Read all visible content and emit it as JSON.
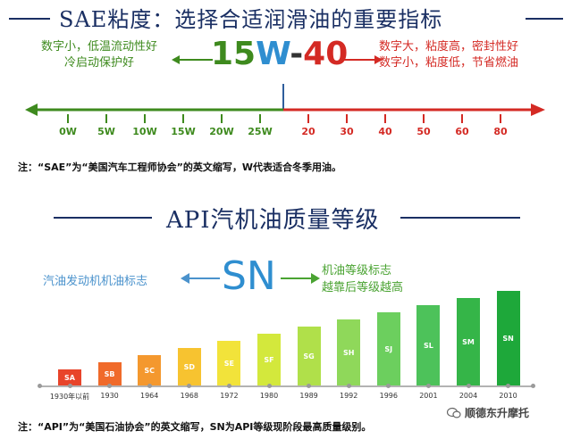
{
  "sae": {
    "title": "SAE粘度：选择合适润滑油的重要指标",
    "grade": {
      "w_part": "15",
      "w_letter": "W",
      "dash": "-",
      "hot": "40"
    },
    "left_desc": [
      "数字小，低温流动性好",
      "冷启动保护好"
    ],
    "right_desc": [
      "数字大，粘度高，密封性好",
      "数字小，粘度低，节省燃油"
    ],
    "winter_ticks": [
      "0W",
      "5W",
      "10W",
      "15W",
      "20W",
      "25W"
    ],
    "summer_ticks": [
      "20",
      "30",
      "40",
      "50",
      "60",
      "80"
    ],
    "note": "注：“SAE”为“美国汽车工程师协会”的英文缩写，W代表适合冬季用油。"
  },
  "api": {
    "title": "API汽机油质量等级",
    "left_desc": "汽油发动机机油标志",
    "grade": "SN",
    "right_desc": [
      "机油等级标志",
      "越靠后等级越高"
    ],
    "chart_data": {
      "type": "bar",
      "categories": [
        "SA",
        "SB",
        "SC",
        "SD",
        "SE",
        "SF",
        "SG",
        "SH",
        "SJ",
        "SL",
        "SM",
        "SN"
      ],
      "years": [
        "1930年以前",
        "1930",
        "1964",
        "1968",
        "1972",
        "1980",
        "1989",
        "1992",
        "1996",
        "2001",
        "2004",
        "2010"
      ],
      "values": [
        1,
        2,
        3,
        4,
        5,
        6,
        7,
        8,
        9,
        10,
        11,
        12
      ],
      "colors": [
        "#e8442a",
        "#f06a2a",
        "#f4982e",
        "#f7c330",
        "#f2e33a",
        "#d3e83c",
        "#b0e04a",
        "#8fd85a",
        "#6ccf5e",
        "#4dc25a",
        "#35b548",
        "#1ea83a"
      ]
    },
    "note": "注：“API”为“美国石油协会”的英文缩写，SN为API等级现阶段最高质量级别。"
  },
  "watermark": "顺德东升摩托",
  "colors": {
    "navy": "#1a2f63",
    "green": "#3e8a1e",
    "red": "#d42a24",
    "blue": "#2f8ed0",
    "api_green": "#4aa332",
    "api_blue": "#4a92cc"
  }
}
